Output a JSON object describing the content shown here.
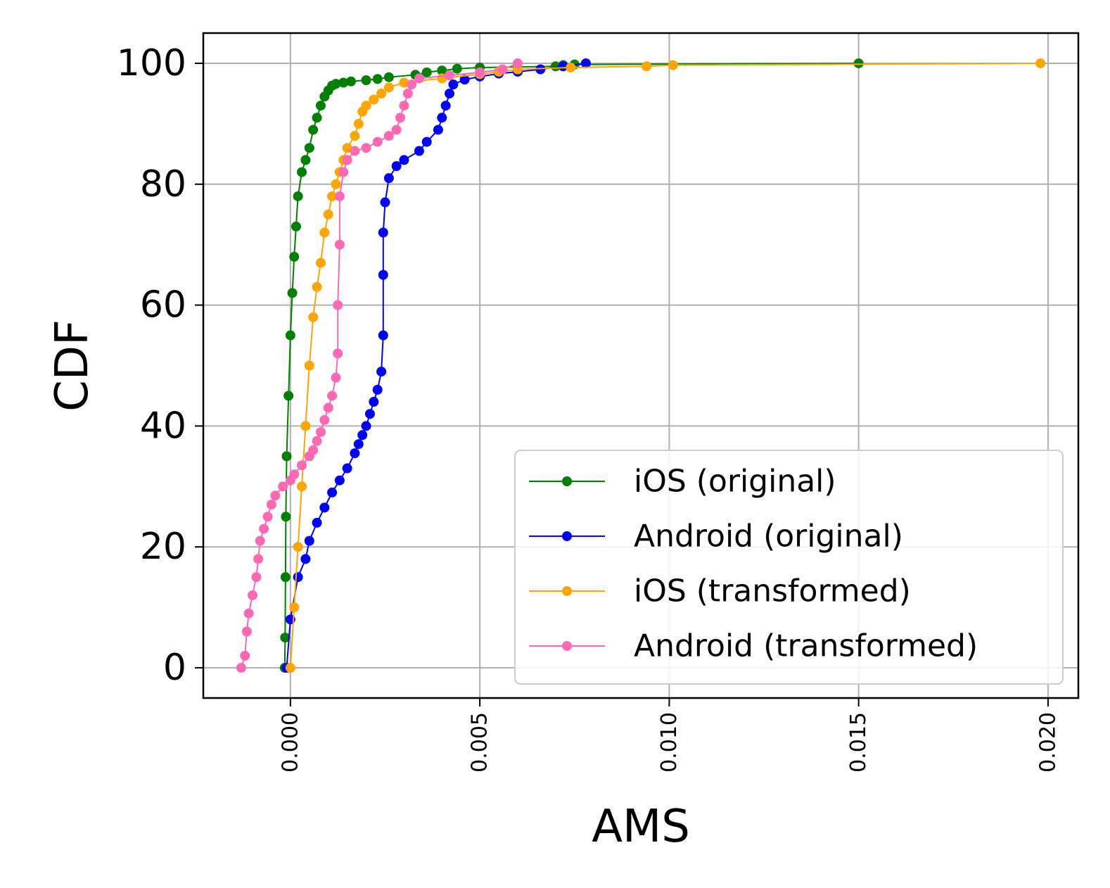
{
  "chart_data": {
    "type": "line",
    "xlabel": "AMS",
    "ylabel": "CDF",
    "xlim": [
      -0.0023,
      0.0208
    ],
    "ylim": [
      -5,
      105
    ],
    "x_ticks": [
      {
        "value": 0.0,
        "label": "0.000"
      },
      {
        "value": 0.005,
        "label": "0.005"
      },
      {
        "value": 0.01,
        "label": "0.010"
      },
      {
        "value": 0.015,
        "label": "0.015"
      },
      {
        "value": 0.02,
        "label": "0.020"
      }
    ],
    "y_ticks": [
      {
        "value": 0,
        "label": "0"
      },
      {
        "value": 20,
        "label": "20"
      },
      {
        "value": 40,
        "label": "40"
      },
      {
        "value": 60,
        "label": "60"
      },
      {
        "value": 80,
        "label": "80"
      },
      {
        "value": 100,
        "label": "100"
      }
    ],
    "grid": true,
    "legend_position": "lower-right",
    "series": [
      {
        "name": "iOS (original)",
        "color": "#008000",
        "points": [
          [
            -0.00015,
            0
          ],
          [
            -0.00014,
            5
          ],
          [
            -0.00013,
            15
          ],
          [
            -0.00012,
            25
          ],
          [
            -0.0001,
            35
          ],
          [
            -5e-05,
            45
          ],
          [
            0.0,
            55
          ],
          [
            5e-05,
            62
          ],
          [
            0.0001,
            68
          ],
          [
            0.00015,
            73
          ],
          [
            0.0002,
            78
          ],
          [
            0.0003,
            82
          ],
          [
            0.0004,
            84
          ],
          [
            0.0005,
            86
          ],
          [
            0.0006,
            89
          ],
          [
            0.0007,
            91
          ],
          [
            0.0008,
            93
          ],
          [
            0.0009,
            94.5
          ],
          [
            0.001,
            95.5
          ],
          [
            0.0011,
            96.3
          ],
          [
            0.0012,
            96.6
          ],
          [
            0.0014,
            96.8
          ],
          [
            0.0016,
            97.0
          ],
          [
            0.002,
            97.2
          ],
          [
            0.0023,
            97.4
          ],
          [
            0.0026,
            97.7
          ],
          [
            0.0033,
            98.1
          ],
          [
            0.0036,
            98.5
          ],
          [
            0.004,
            98.8
          ],
          [
            0.0044,
            99.1
          ],
          [
            0.005,
            99.3
          ],
          [
            0.007,
            99.5
          ],
          [
            0.0072,
            99.7
          ],
          [
            0.0075,
            99.8
          ],
          [
            0.015,
            100
          ]
        ]
      },
      {
        "name": "Android (original)",
        "color": "#0000ff",
        "points": [
          [
            -0.0001,
            0
          ],
          [
            0.0,
            8
          ],
          [
            0.0002,
            15
          ],
          [
            0.0004,
            18
          ],
          [
            0.0005,
            21
          ],
          [
            0.0007,
            24
          ],
          [
            0.0009,
            26.5
          ],
          [
            0.0011,
            29
          ],
          [
            0.0013,
            31
          ],
          [
            0.0015,
            33
          ],
          [
            0.0017,
            35.5
          ],
          [
            0.0018,
            37
          ],
          [
            0.0019,
            38.5
          ],
          [
            0.002,
            40
          ],
          [
            0.0021,
            42
          ],
          [
            0.0022,
            44
          ],
          [
            0.0023,
            46
          ],
          [
            0.0024,
            49
          ],
          [
            0.00245,
            55
          ],
          [
            0.00245,
            65
          ],
          [
            0.00245,
            72
          ],
          [
            0.0025,
            77
          ],
          [
            0.0026,
            81
          ],
          [
            0.0028,
            83
          ],
          [
            0.003,
            84
          ],
          [
            0.0034,
            85.5
          ],
          [
            0.0036,
            87
          ],
          [
            0.0039,
            89
          ],
          [
            0.004,
            91
          ],
          [
            0.0041,
            93
          ],
          [
            0.0042,
            95
          ],
          [
            0.0043,
            96.5
          ],
          [
            0.0046,
            97.3
          ],
          [
            0.005,
            97.8
          ],
          [
            0.0055,
            98.3
          ],
          [
            0.006,
            98.6
          ],
          [
            0.0066,
            99.0
          ],
          [
            0.0072,
            99.5
          ],
          [
            0.0078,
            100
          ]
        ]
      },
      {
        "name": "iOS (transformed)",
        "color": "#ffa500",
        "points": [
          [
            0.0,
            0
          ],
          [
            0.0001,
            10
          ],
          [
            0.0002,
            20
          ],
          [
            0.0003,
            30
          ],
          [
            0.0004,
            40
          ],
          [
            0.0005,
            50
          ],
          [
            0.0006,
            58
          ],
          [
            0.0007,
            63
          ],
          [
            0.0008,
            67
          ],
          [
            0.0009,
            72
          ],
          [
            0.001,
            75
          ],
          [
            0.0011,
            78
          ],
          [
            0.0012,
            80
          ],
          [
            0.0013,
            82
          ],
          [
            0.0014,
            84
          ],
          [
            0.0015,
            86
          ],
          [
            0.0017,
            88
          ],
          [
            0.0018,
            90
          ],
          [
            0.0019,
            92
          ],
          [
            0.002,
            93
          ],
          [
            0.0022,
            94
          ],
          [
            0.0024,
            95
          ],
          [
            0.0026,
            96
          ],
          [
            0.003,
            96.8
          ],
          [
            0.004,
            97.5
          ],
          [
            0.005,
            98.2
          ],
          [
            0.0055,
            98.6
          ],
          [
            0.006,
            99.0
          ],
          [
            0.0074,
            99.3
          ],
          [
            0.0094,
            99.5
          ],
          [
            0.0101,
            99.7
          ],
          [
            0.0198,
            100
          ]
        ]
      },
      {
        "name": "Android (transformed)",
        "color": "#ff69b4",
        "points": [
          [
            -0.0013,
            0
          ],
          [
            -0.0012,
            2
          ],
          [
            -0.00115,
            6
          ],
          [
            -0.0011,
            9
          ],
          [
            -0.001,
            12
          ],
          [
            -0.0009,
            15
          ],
          [
            -0.00085,
            18
          ],
          [
            -0.0008,
            21
          ],
          [
            -0.0007,
            23
          ],
          [
            -0.0006,
            25
          ],
          [
            -0.0005,
            27
          ],
          [
            -0.0004,
            28.5
          ],
          [
            -0.0002,
            30
          ],
          [
            0.0,
            31
          ],
          [
            0.0001,
            32
          ],
          [
            0.0003,
            33.5
          ],
          [
            0.0005,
            35
          ],
          [
            0.0006,
            36
          ],
          [
            0.0007,
            37.5
          ],
          [
            0.0008,
            39
          ],
          [
            0.0009,
            41
          ],
          [
            0.001,
            43
          ],
          [
            0.0011,
            45
          ],
          [
            0.0012,
            48
          ],
          [
            0.00125,
            52
          ],
          [
            0.00125,
            60
          ],
          [
            0.0013,
            70
          ],
          [
            0.0013,
            78
          ],
          [
            0.0014,
            82
          ],
          [
            0.0015,
            84
          ],
          [
            0.0017,
            85.5
          ],
          [
            0.002,
            86
          ],
          [
            0.0023,
            87
          ],
          [
            0.0026,
            88
          ],
          [
            0.0028,
            89
          ],
          [
            0.0029,
            91
          ],
          [
            0.003,
            93
          ],
          [
            0.0031,
            95
          ],
          [
            0.0032,
            96.5
          ],
          [
            0.0034,
            97.5
          ],
          [
            0.0042,
            98
          ],
          [
            0.005,
            98.5
          ],
          [
            0.0056,
            99
          ],
          [
            0.006,
            100
          ]
        ]
      }
    ]
  }
}
